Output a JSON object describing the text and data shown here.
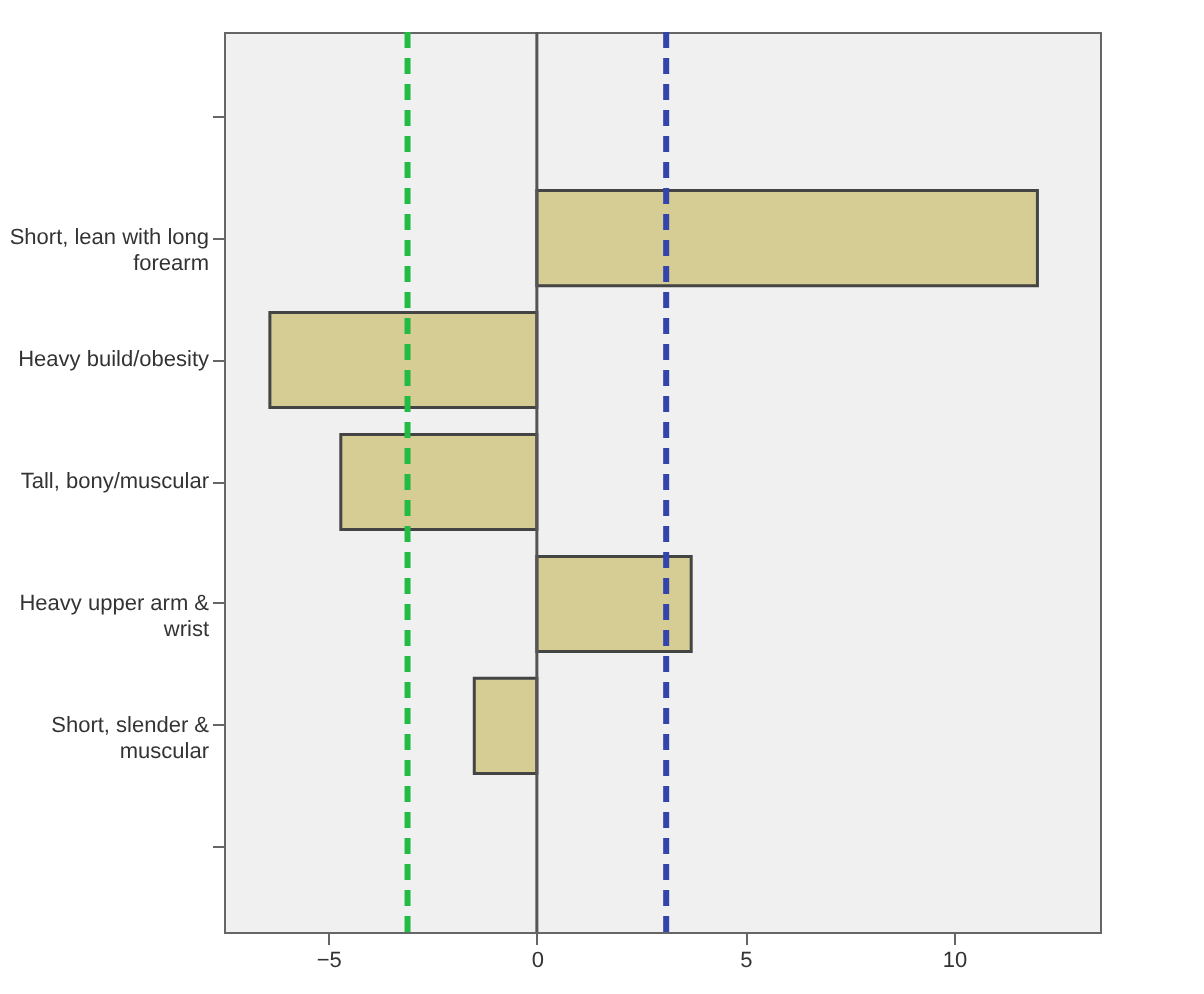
{
  "chart_data": {
    "type": "bar",
    "orientation": "horizontal",
    "categories": [
      null,
      "Short, lean with long forearm",
      "Heavy build/obesity",
      "Tall, bony/muscular",
      "Heavy upper arm & wrist",
      "Short, slender & muscular",
      null
    ],
    "values": [
      null,
      12.0,
      -6.4,
      -4.7,
      3.7,
      -1.5,
      null
    ],
    "color": "#d5cd94",
    "xlim": [
      -7.5,
      13.5
    ],
    "xticks": [
      -5,
      0,
      5,
      10
    ],
    "ref_lines": [
      {
        "axis": "x",
        "value": -3.1,
        "color": "#22bb44",
        "line_style": "dashed"
      },
      {
        "axis": "x",
        "value": 3.1,
        "color": "#3344aa",
        "line_style": "dashed"
      },
      {
        "axis": "x",
        "value": 0,
        "color": "#555555",
        "line_style": "solid"
      }
    ],
    "grid": false
  }
}
